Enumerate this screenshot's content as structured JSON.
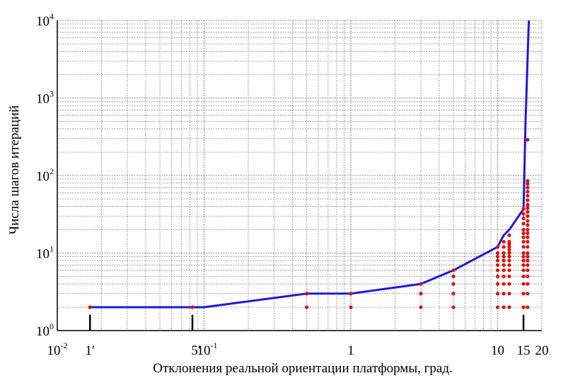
{
  "chart_data": {
    "type": "line",
    "title": "",
    "xlabel": "Отклонения реальной ориентации платформы, град.",
    "ylabel": "Числа шагов итераций",
    "xscale": "log",
    "yscale": "log",
    "xlim": [
      0.01,
      20
    ],
    "ylim": [
      1,
      10000
    ],
    "grid": true,
    "legend": "none",
    "colors": {
      "line": "#1a1adf",
      "points": "#e01010",
      "markers": "#000000",
      "grid": "#8a8a8a"
    },
    "x_tick_labels": [
      {
        "x": 0.01,
        "base": "10",
        "exp": "-2"
      },
      {
        "x": 0.0167,
        "base": "1′",
        "exp": ""
      },
      {
        "x": 0.0833,
        "base": "5′",
        "exp": ""
      },
      {
        "x": 0.1,
        "base": "10",
        "exp": "-1"
      },
      {
        "x": 1,
        "base": "1",
        "exp": ""
      },
      {
        "x": 10,
        "base": "10",
        "exp": ""
      },
      {
        "x": 15,
        "base": "15",
        "exp": ""
      },
      {
        "x": 20,
        "base": "20",
        "exp": ""
      }
    ],
    "y_tick_labels": [
      {
        "y": 1,
        "base": "10",
        "exp": "0"
      },
      {
        "y": 10,
        "base": "10",
        "exp": "1"
      },
      {
        "y": 100,
        "base": "10",
        "exp": "2"
      },
      {
        "y": 1000,
        "base": "10",
        "exp": "3"
      },
      {
        "y": 10000,
        "base": "10",
        "exp": "4"
      }
    ],
    "reference_markers_x": [
      0.0167,
      0.0833,
      15
    ],
    "series": [
      {
        "style": "line",
        "x": [
          0.0167,
          0.0833,
          0.1,
          0.5,
          1,
          3,
          5,
          10,
          11,
          12,
          15,
          15.5,
          16.3
        ],
        "y": [
          2,
          2,
          2,
          3,
          3,
          4,
          6,
          12,
          17,
          20,
          37,
          500,
          10000
        ]
      },
      {
        "style": "scatter",
        "x": [
          0.0167,
          0.0833,
          0.5,
          0.5,
          1,
          1,
          3,
          3,
          3,
          3,
          5,
          5,
          5,
          5,
          5,
          10,
          10,
          10,
          10,
          10,
          10,
          10,
          10,
          10,
          10,
          11,
          11,
          11,
          11,
          11,
          11,
          11,
          11,
          11,
          11,
          11,
          12,
          12,
          12,
          12,
          12,
          12,
          12,
          12,
          12,
          12,
          12,
          12,
          12,
          12,
          15,
          15,
          15,
          15,
          15,
          15,
          15,
          15,
          15,
          15,
          15,
          15,
          15,
          15,
          15,
          15,
          15,
          15,
          16,
          16,
          16,
          16,
          16,
          16,
          16,
          16,
          16,
          16,
          16,
          16,
          16,
          16,
          16,
          16,
          16,
          16,
          16,
          16,
          16,
          16,
          16,
          16,
          16,
          16,
          16
        ],
        "y": [
          2,
          2,
          2,
          3,
          2,
          3,
          2,
          3,
          4,
          4,
          2,
          3,
          4,
          5,
          6,
          2,
          3,
          4,
          5,
          6,
          7,
          8,
          9,
          10,
          12,
          2,
          3,
          4,
          5,
          6,
          7,
          8,
          9,
          10,
          12,
          14,
          2,
          3,
          4,
          5,
          6,
          7,
          8,
          9,
          10,
          11,
          12,
          13,
          14,
          17,
          2,
          3,
          4,
          5,
          6,
          7,
          8,
          9,
          10,
          12,
          14,
          16,
          18,
          20,
          24,
          28,
          32,
          37,
          2,
          3,
          4,
          5,
          6,
          7,
          8,
          9,
          10,
          12,
          14,
          16,
          18,
          20,
          23,
          26,
          30,
          34,
          38,
          42,
          48,
          55,
          62,
          70,
          78,
          85,
          290
        ]
      }
    ]
  }
}
